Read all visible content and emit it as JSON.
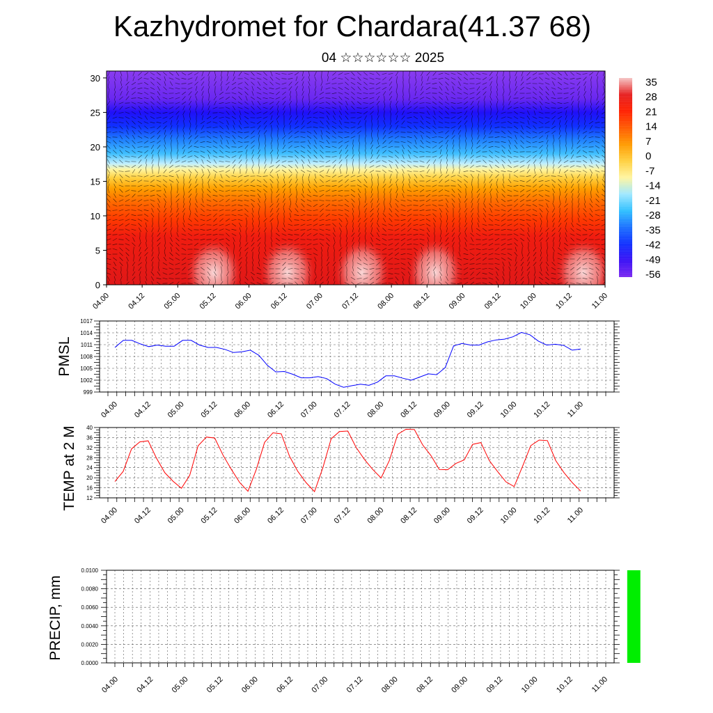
{
  "title": "Kazhydromet for Chardara(41.37 68)",
  "subtitle": "04 ☆☆☆☆☆☆ 2025",
  "chart_data": [
    {
      "type": "heatmap",
      "title": "",
      "ylim": [
        0,
        31
      ],
      "yticks": [
        0,
        5,
        10,
        15,
        20,
        25,
        30
      ],
      "xticks": [
        "04.00",
        "04.12",
        "05.00",
        "05.12",
        "06.00",
        "06.12",
        "07.00",
        "07.12",
        "08.00",
        "08.12",
        "09.00",
        "09.12",
        "10.00",
        "10.12",
        "11.00"
      ],
      "colorbar_labels": [
        "35",
        "28",
        "21",
        "14",
        "7",
        "0",
        "-7",
        "-14",
        "-21",
        "-28",
        "-35",
        "-42",
        "-49",
        "-56"
      ],
      "colorbar_colors": [
        "#f5c4c4",
        "#e62020",
        "#ff2000",
        "#ff5a00",
        "#ff9a00",
        "#ffd040",
        "#fff5a0",
        "#a0e8ff",
        "#30c0ff",
        "#1a70ff",
        "#1030ff",
        "#3a10f5",
        "#7a28f0"
      ],
      "band_heights": [
        0,
        8,
        13,
        17,
        21,
        24,
        27,
        31
      ],
      "overlay": "wind vectors"
    },
    {
      "type": "line",
      "ylabel": "PMSL",
      "ylim": [
        999,
        1017
      ],
      "yticks": [
        "1017",
        "1014",
        "1011",
        "1008",
        "1005",
        "1002",
        "999"
      ],
      "xticks": [
        "04.00",
        "04.12",
        "05.00",
        "05.12",
        "06.00",
        "06.12",
        "07.00",
        "07.12",
        "08.00",
        "08.12",
        "09.00",
        "09.12",
        "10.00",
        "10.12",
        "11.00"
      ],
      "series": [
        {
          "color": "#0000ff",
          "values": [
            1010.3,
            1012.1,
            1012.1,
            1011.2,
            1010.5,
            1010.9,
            1010.6,
            1010.6,
            1012.1,
            1012.1,
            1010.9,
            1010.3,
            1010.3,
            1009.8,
            1009.0,
            1009.2,
            1009.6,
            1008.3,
            1005.8,
            1004.1,
            1004.2,
            1003.5,
            1002.6,
            1002.6,
            1002.9,
            1002.4,
            1001.0,
            1000.2,
            1000.6,
            1001.0,
            1000.7,
            1001.5,
            1003.1,
            1003.1,
            1002.5,
            1002.0,
            1002.8,
            1003.6,
            1003.4,
            1005.2,
            1010.7,
            1011.3,
            1010.9,
            1010.9,
            1011.7,
            1012.2,
            1012.4,
            1013.0,
            1014.1,
            1013.5,
            1011.9,
            1010.9,
            1011.1,
            1010.8,
            1009.6,
            1009.9
          ]
        }
      ]
    },
    {
      "type": "line",
      "ylabel": "TEMP at 2 M",
      "ylim": [
        12,
        40
      ],
      "yticks": [
        "40",
        "36",
        "32",
        "28",
        "24",
        "20",
        "16",
        "12"
      ],
      "xticks": [
        "04.00",
        "04.12",
        "05.00",
        "05.12",
        "06.00",
        "06.12",
        "07.00",
        "07.12",
        "08.00",
        "08.12",
        "09.00",
        "09.12",
        "10.00",
        "10.12",
        "11.00"
      ],
      "series": [
        {
          "color": "#ff0000",
          "values": [
            18.5,
            22.5,
            31.5,
            34.3,
            34.7,
            27.8,
            22.0,
            18.6,
            15.8,
            21.0,
            32.7,
            36.2,
            35.8,
            29.0,
            23.3,
            18.1,
            14.6,
            23.3,
            34.1,
            37.9,
            37.5,
            28.5,
            22.5,
            18.0,
            14.5,
            24.0,
            35.5,
            38.4,
            38.6,
            32.1,
            27.3,
            23.3,
            19.9,
            26.9,
            37.3,
            39.3,
            39.2,
            33.1,
            28.8,
            23.3,
            23.2,
            25.7,
            27.1,
            33.3,
            34.0,
            26.9,
            22.5,
            18.4,
            16.5,
            24.5,
            32.8,
            35.0,
            34.8,
            26.8,
            22.0,
            18.0,
            14.7
          ]
        }
      ]
    },
    {
      "type": "bar",
      "ylabel": "PRECIP, mm",
      "ylim": [
        0,
        0.01
      ],
      "yticks": [
        "0.0100",
        "0.0080",
        "0.0060",
        "0.0040",
        "0.0020",
        "0.0000"
      ],
      "xticks": [
        "04.00",
        "04.12",
        "05.00",
        "05.12",
        "06.00",
        "06.12",
        "07.00",
        "07.12",
        "08.00",
        "08.12",
        "09.00",
        "09.12",
        "10.00",
        "10.12",
        "11.00"
      ],
      "bars": [
        {
          "x": 59.2,
          "width": 1.5,
          "value": 0.01,
          "color": "#00ee00"
        }
      ]
    }
  ]
}
